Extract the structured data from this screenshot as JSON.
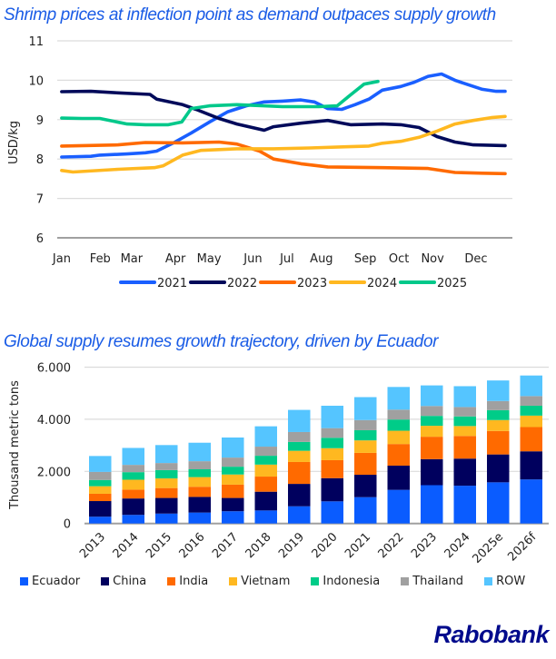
{
  "chart_data": [
    {
      "type": "line",
      "title": "Shrimp prices at inflection point as demand outpaces supply growth",
      "xlabel": "",
      "ylabel": "USD/kg",
      "ylim": [
        6,
        11
      ],
      "yticks": [
        "6",
        "7",
        "8",
        "9",
        "10",
        "11"
      ],
      "xlim": [
        0,
        1
      ],
      "xticks": [
        {
          "label": "Jan",
          "pos": 0.01
        },
        {
          "label": "Feb",
          "pos": 0.096
        },
        {
          "label": "Mar",
          "pos": 0.166
        },
        {
          "label": "Apr",
          "pos": 0.264
        },
        {
          "label": "May",
          "pos": 0.339
        },
        {
          "label": "Jun",
          "pos": 0.437
        },
        {
          "label": "Jul",
          "pos": 0.513
        },
        {
          "label": "Aug",
          "pos": 0.59
        },
        {
          "label": "Sep",
          "pos": 0.688
        },
        {
          "label": "Oct",
          "pos": 0.763
        },
        {
          "label": "Nov",
          "pos": 0.838
        },
        {
          "label": "Dec",
          "pos": 0.935
        }
      ],
      "grid": true,
      "legend_position": "bottom",
      "series": [
        {
          "name": "2021",
          "color": "#1a5fff",
          "x": [
            0.01,
            0.075,
            0.095,
            0.156,
            0.197,
            0.222,
            0.258,
            0.299,
            0.34,
            0.381,
            0.422,
            0.462,
            0.503,
            0.544,
            0.574,
            0.604,
            0.635,
            0.665,
            0.696,
            0.726,
            0.767,
            0.797,
            0.828,
            0.858,
            0.888,
            0.919,
            0.949,
            0.98,
            1.0
          ],
          "values": [
            8.05,
            8.07,
            8.1,
            8.13,
            8.16,
            8.2,
            8.4,
            8.66,
            8.94,
            9.2,
            9.35,
            9.45,
            9.47,
            9.5,
            9.45,
            9.28,
            9.26,
            9.38,
            9.52,
            9.75,
            9.84,
            9.95,
            10.1,
            10.16,
            10.0,
            9.88,
            9.77,
            9.72,
            9.72
          ]
        },
        {
          "name": "2022",
          "color": "#000a5a",
          "x": [
            0.01,
            0.075,
            0.136,
            0.207,
            0.222,
            0.28,
            0.31,
            0.361,
            0.401,
            0.462,
            0.483,
            0.544,
            0.604,
            0.655,
            0.726,
            0.767,
            0.808,
            0.848,
            0.888,
            0.929,
            1.0
          ],
          "values": [
            9.71,
            9.72,
            9.68,
            9.64,
            9.52,
            9.38,
            9.26,
            9.03,
            8.89,
            8.73,
            8.82,
            8.91,
            8.98,
            8.87,
            8.89,
            8.87,
            8.8,
            8.57,
            8.43,
            8.36,
            8.34
          ]
        },
        {
          "name": "2023",
          "color": "#ff6a00",
          "x": [
            0.01,
            0.136,
            0.197,
            0.28,
            0.361,
            0.401,
            0.452,
            0.483,
            0.544,
            0.604,
            0.726,
            0.828,
            0.888,
            0.949,
            1.0
          ],
          "values": [
            8.33,
            8.36,
            8.42,
            8.41,
            8.43,
            8.38,
            8.2,
            8.0,
            7.88,
            7.8,
            7.78,
            7.76,
            7.66,
            7.64,
            7.63
          ]
        },
        {
          "name": "2024",
          "color": "#ffb820",
          "x": [
            0.01,
            0.035,
            0.136,
            0.217,
            0.237,
            0.28,
            0.32,
            0.401,
            0.483,
            0.564,
            0.645,
            0.696,
            0.726,
            0.767,
            0.808,
            0.848,
            0.888,
            0.929,
            0.969,
            1.0
          ],
          "values": [
            7.71,
            7.67,
            7.74,
            7.78,
            7.83,
            8.1,
            8.22,
            8.26,
            8.26,
            8.28,
            8.31,
            8.33,
            8.4,
            8.45,
            8.55,
            8.71,
            8.89,
            8.98,
            9.05,
            9.08
          ]
        },
        {
          "name": "2025",
          "color": "#00c88a",
          "x": [
            0.01,
            0.055,
            0.095,
            0.156,
            0.197,
            0.248,
            0.278,
            0.299,
            0.34,
            0.401,
            0.462,
            0.503,
            0.584,
            0.625,
            0.655,
            0.685,
            0.716
          ],
          "values": [
            9.04,
            9.03,
            9.03,
            8.89,
            8.87,
            8.87,
            8.94,
            9.28,
            9.35,
            9.38,
            9.35,
            9.33,
            9.33,
            9.35,
            9.63,
            9.9,
            9.97
          ]
        }
      ]
    },
    {
      "type": "bar",
      "stacked": true,
      "title": "Global supply resumes growth trajectory, driven by Ecuador",
      "xlabel": "",
      "ylabel": "Thousand metric tons",
      "ylim": [
        0,
        6000
      ],
      "yticks": [
        "0",
        "2.000",
        "4.000",
        "6.000"
      ],
      "grid": true,
      "legend_position": "bottom",
      "categories": [
        "2013",
        "2014",
        "2015",
        "2016",
        "2017",
        "2018",
        "2019",
        "2020",
        "2021",
        "2022",
        "2023",
        "2024",
        "2025e",
        "2026f"
      ],
      "series": [
        {
          "name": "Ecuador",
          "color": "#0a5cff",
          "values": [
            260,
            330,
            380,
            420,
            470,
            500,
            660,
            850,
            1010,
            1290,
            1470,
            1450,
            1580,
            1690
          ]
        },
        {
          "name": "China",
          "color": "#00005e",
          "values": [
            600,
            630,
            600,
            600,
            510,
            720,
            860,
            890,
            860,
            930,
            1000,
            1040,
            1070,
            1080
          ]
        },
        {
          "name": "India",
          "color": "#ff6a00",
          "values": [
            280,
            340,
            380,
            390,
            510,
            580,
            840,
            690,
            840,
            830,
            860,
            870,
            900,
            930
          ]
        },
        {
          "name": "Vietnam",
          "color": "#ffb820",
          "values": [
            290,
            380,
            370,
            370,
            390,
            460,
            430,
            460,
            480,
            510,
            420,
            380,
            420,
            440
          ]
        },
        {
          "name": "Indonesia",
          "color": "#00cc88",
          "values": [
            240,
            290,
            320,
            300,
            300,
            340,
            340,
            400,
            390,
            430,
            380,
            370,
            380,
            380
          ]
        },
        {
          "name": "Thailand",
          "color": "#a0a0a0",
          "values": [
            310,
            280,
            270,
            310,
            350,
            350,
            380,
            370,
            390,
            380,
            380,
            360,
            350,
            370
          ]
        },
        {
          "name": "ROW",
          "color": "#55c5ff",
          "values": [
            610,
            650,
            690,
            710,
            770,
            780,
            850,
            860,
            880,
            870,
            790,
            800,
            790,
            790
          ]
        }
      ]
    }
  ],
  "brand": {
    "logo_text": "Rabobank",
    "color": "#000a8c"
  }
}
